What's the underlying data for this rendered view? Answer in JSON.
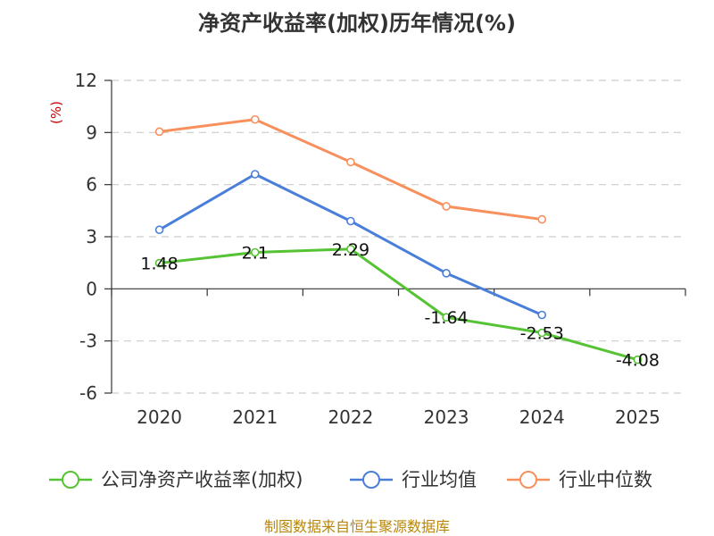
{
  "chart_data": {
    "type": "line",
    "title": "净资产收益率(加权)历年情况(%)",
    "ylabel": "(%)",
    "categories": [
      "2020",
      "2021",
      "2022",
      "2023",
      "2024",
      "2025"
    ],
    "ylim": [
      -6,
      12
    ],
    "yticks": [
      "12",
      "9",
      "6",
      "3",
      "0",
      "-3",
      "-6"
    ],
    "ytick_values": [
      12,
      9,
      6,
      3,
      0,
      -3,
      -6
    ],
    "grid": true,
    "legend_position": "bottom",
    "series": [
      {
        "name": "公司净资产收益率(加权)",
        "color": "#55c334",
        "values": [
          1.48,
          2.1,
          2.29,
          -1.64,
          -2.53,
          -4.08
        ],
        "labels": [
          "1.48",
          "2.1",
          "2.29",
          "-1.64",
          "-2.53",
          "-4.08"
        ]
      },
      {
        "name": "行业均值",
        "color": "#4a7fd9",
        "values": [
          3.4,
          6.6,
          3.9,
          0.9,
          -1.5,
          null
        ]
      },
      {
        "name": "行业中位数",
        "color": "#f8905e",
        "values": [
          9.05,
          9.75,
          7.3,
          4.75,
          4.0,
          null
        ]
      }
    ]
  },
  "footer": {
    "source": "制图数据来自恒生聚源数据库"
  }
}
